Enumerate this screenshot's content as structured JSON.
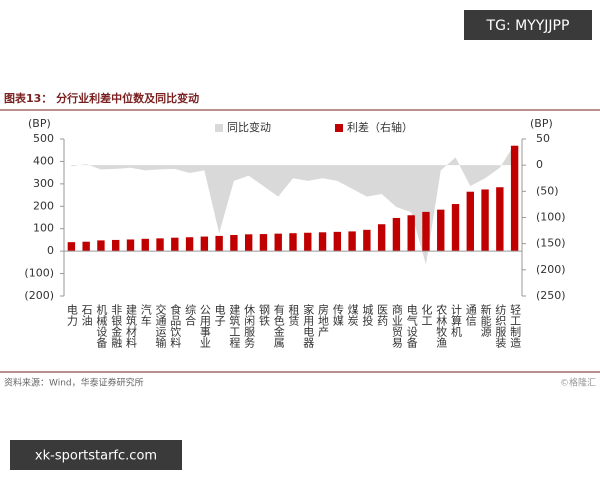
{
  "chart_data": {
    "type": "bar",
    "title": "图表13：  分行业利差中位数及同比变动",
    "ylabel": "(BP)",
    "y2label": "(BP)",
    "source": "资料来源：Wind，华泰证券研究所",
    "credit": "©格隆汇",
    "categories": [
      "电力",
      "石油",
      "机械设备",
      "非银金融",
      "建筑材料",
      "汽车",
      "交通运输",
      "食品饮料",
      "综合",
      "公用事业",
      "电子",
      "建筑工程",
      "休闲服务",
      "钢铁",
      "有色金属",
      "租赁",
      "家用电器",
      "房地产",
      "传媒",
      "煤炭",
      "城投",
      "医药",
      "商业贸易",
      "电气设备",
      "化工",
      "农林牧渔",
      "计算机",
      "通信",
      "新能源",
      "纺织服装",
      "轻工制造"
    ],
    "ylim": [
      -200,
      500
    ],
    "yticks": [
      500,
      400,
      300,
      200,
      100,
      0,
      {
        "value": -100,
        "label": "(100)"
      },
      {
        "value": -200,
        "label": "(200)"
      }
    ],
    "y2lim": [
      -250,
      50
    ],
    "y2ticks": [
      50,
      0,
      {
        "value": -50,
        "label": "(50)"
      },
      {
        "value": -100,
        "label": "(100)"
      },
      {
        "value": -150,
        "label": "(150)"
      },
      {
        "value": -200,
        "label": "(200)"
      },
      {
        "value": -250,
        "label": "(250)"
      }
    ],
    "legend": "top",
    "series": [
      {
        "name": "同比变动",
        "color": "#d9d9d9",
        "axis": "y2",
        "type": "area",
        "values": [
          -2,
          2,
          -8,
          -7,
          -5,
          -10,
          -8,
          -7,
          -15,
          -10,
          -130,
          -30,
          -20,
          -40,
          -60,
          -25,
          -30,
          -25,
          -30,
          -45,
          -60,
          -55,
          -80,
          -90,
          -190,
          -10,
          15,
          -40,
          -25,
          -5,
          40
        ]
      },
      {
        "name": "利差（右轴）",
        "color": "#c00000",
        "type": "bar",
        "values": [
          40,
          42,
          48,
          50,
          52,
          55,
          57,
          60,
          62,
          65,
          68,
          72,
          75,
          76,
          78,
          80,
          82,
          84,
          86,
          88,
          95,
          120,
          148,
          160,
          175,
          185,
          210,
          265,
          275,
          285,
          470
        ]
      }
    ]
  },
  "overlay": {
    "top": "TG: MYYJJPP",
    "bottom": "xk-sportstarfc.com"
  }
}
